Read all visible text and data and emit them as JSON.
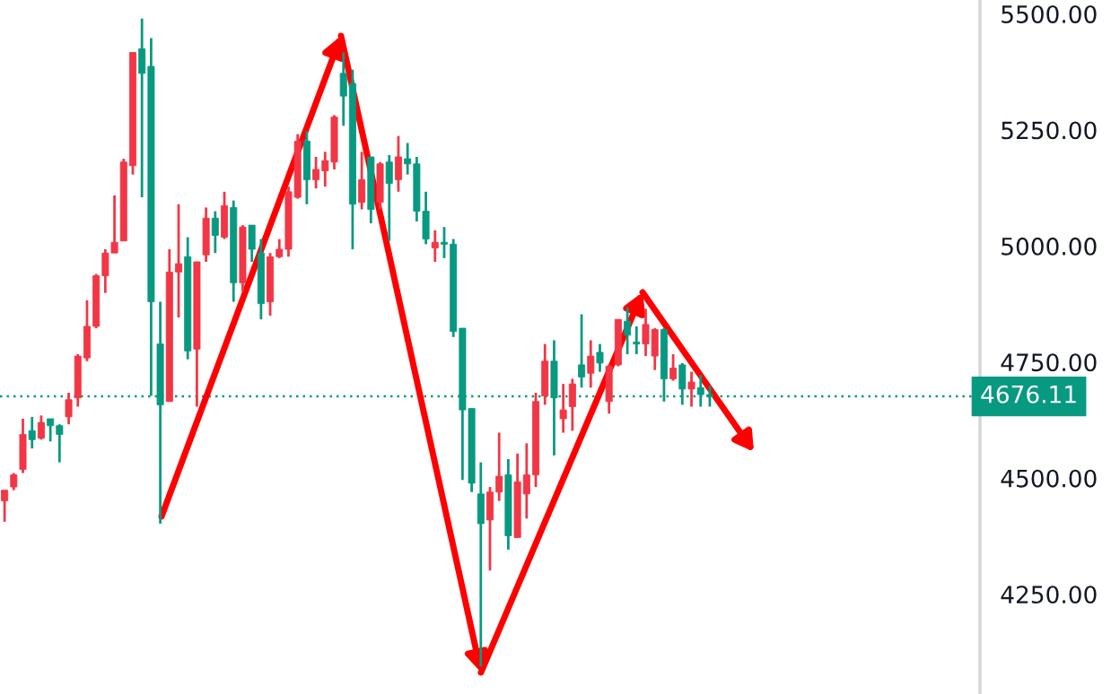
{
  "chart_data": {
    "type": "candlestick",
    "categories": [
      null,
      null,
      null,
      null,
      null,
      null,
      null,
      null,
      null,
      null,
      null,
      null,
      null,
      null,
      null,
      null,
      null,
      null,
      null,
      null,
      null,
      null,
      null,
      null,
      null,
      null,
      null,
      null,
      null,
      null,
      null,
      null,
      null,
      null,
      null,
      null,
      null,
      null,
      null,
      null,
      null,
      null,
      null,
      null,
      null,
      null,
      null,
      null,
      null,
      null,
      null,
      null,
      null,
      null,
      null,
      null,
      null,
      null,
      null,
      null,
      null,
      null,
      null,
      null,
      null,
      null,
      null,
      null,
      null,
      null,
      null,
      null,
      null,
      null,
      null,
      null,
      null,
      null,
      null,
      null,
      null,
      null,
      null,
      null,
      null,
      null,
      null,
      null,
      null,
      null,
      null,
      null,
      null,
      null,
      null,
      null,
      null,
      null,
      null,
      null,
      null,
      null,
      null,
      null,
      null,
      null,
      null
    ],
    "ohlc": [
      [
        4451,
        4474,
        4406,
        4474
      ],
      [
        4481,
        4511,
        4474,
        4507
      ],
      [
        4519,
        4628,
        4511,
        4594
      ],
      [
        4602,
        4632,
        4564,
        4583
      ],
      [
        4586,
        4635,
        4583,
        4620
      ],
      [
        4628,
        4628,
        4579,
        4613
      ],
      [
        4613,
        4616,
        4534,
        4594
      ],
      [
        4632,
        4684,
        4616,
        4669
      ],
      [
        4673,
        4767,
        4654,
        4763
      ],
      [
        4759,
        4883,
        4752,
        4827
      ],
      [
        4827,
        4940,
        4823,
        4936
      ],
      [
        4936,
        4993,
        4899,
        4985
      ],
      [
        4985,
        5109,
        4985,
        5008
      ],
      [
        5011,
        5188,
        5011,
        5181
      ],
      [
        5173,
        5417,
        5154,
        5417
      ],
      [
        5425,
        5490,
        5105,
        5372
      ],
      [
        5387,
        5448,
        4677,
        4880
      ],
      [
        4789,
        4880,
        4402,
        4658
      ],
      [
        4665,
        4993,
        4665,
        4944
      ],
      [
        4944,
        5090,
        4846,
        4962
      ],
      [
        4977,
        5019,
        4756,
        4774
      ],
      [
        4778,
        4966,
        4654,
        4966
      ],
      [
        4981,
        5083,
        4966,
        5060
      ],
      [
        5060,
        5075,
        4985,
        5023
      ],
      [
        5019,
        5117,
        5015,
        5087
      ],
      [
        5083,
        5098,
        4880,
        4921
      ],
      [
        4921,
        5045,
        4902,
        5041
      ],
      [
        5045,
        5045,
        4966,
        4993
      ],
      [
        4985,
        5015,
        4842,
        4876
      ],
      [
        4880,
        4985,
        4850,
        4977
      ],
      [
        4977,
        5015,
        4974,
        4993
      ],
      [
        4993,
        5128,
        4977,
        5117
      ],
      [
        5105,
        5241,
        5102,
        5226
      ],
      [
        5226,
        5248,
        5090,
        5143
      ],
      [
        5143,
        5192,
        5124,
        5165
      ],
      [
        5162,
        5203,
        5128,
        5184
      ],
      [
        5181,
        5282,
        5165,
        5278
      ],
      [
        5372,
        5417,
        5259,
        5323
      ],
      [
        5350,
        5380,
        4993,
        5090
      ],
      [
        5094,
        5203,
        5079,
        5143
      ],
      [
        5192,
        5192,
        5049,
        5079
      ],
      [
        5094,
        5181,
        5079,
        5177
      ],
      [
        5181,
        5196,
        5011,
        5135
      ],
      [
        5143,
        5237,
        5117,
        5192
      ],
      [
        5188,
        5222,
        5154,
        5177
      ],
      [
        5177,
        5192,
        5053,
        5075
      ],
      [
        5075,
        5117,
        5004,
        5015
      ],
      [
        4996,
        5034,
        4966,
        5008
      ],
      [
        5008,
        5041,
        4974,
        5004
      ],
      [
        5004,
        5015,
        4804,
        4816
      ],
      [
        4823,
        4823,
        4496,
        4647
      ],
      [
        4650,
        4650,
        4470,
        4489
      ],
      [
        4466,
        4534,
        4094,
        4402
      ],
      [
        4410,
        4481,
        4301,
        4470
      ],
      [
        4470,
        4598,
        4451,
        4504
      ],
      [
        4507,
        4541,
        4346,
        4376
      ],
      [
        4372,
        4553,
        4372,
        4492
      ],
      [
        4466,
        4575,
        4413,
        4507
      ],
      [
        4507,
        4684,
        4481,
        4665
      ],
      [
        4677,
        4789,
        4658,
        4752
      ],
      [
        4752,
        4797,
        4549,
        4673
      ],
      [
        4628,
        4703,
        4598,
        4647
      ],
      [
        4654,
        4714,
        4602,
        4703
      ],
      [
        4744,
        4853,
        4695,
        4718
      ],
      [
        4726,
        4797,
        4695,
        4763
      ],
      [
        4771,
        4789,
        4729,
        4748
      ],
      [
        4665,
        4744,
        4639,
        4741
      ],
      [
        4744,
        4842,
        4741,
        4842
      ],
      [
        4838,
        4868,
        4767,
        4808
      ],
      [
        4793,
        4827,
        4767,
        4789
      ],
      [
        4789,
        4865,
        4763,
        4831
      ],
      [
        4763,
        4823,
        4733,
        4820
      ],
      [
        4820,
        4823,
        4665,
        4714
      ],
      [
        4714,
        4767,
        4710,
        4737
      ],
      [
        4744,
        4748,
        4658,
        4692
      ],
      [
        4692,
        4729,
        4654,
        4707
      ],
      [
        4695,
        4722,
        4654,
        4680
      ],
      [
        4680,
        4699,
        4654,
        4676.11
      ],
      null,
      null,
      null,
      null,
      null,
      null,
      null,
      null,
      null,
      null,
      null,
      null,
      null,
      null,
      null,
      null,
      null,
      null,
      null,
      null,
      null,
      null,
      null,
      null,
      null,
      null,
      null,
      null,
      null
    ],
    "colors": [
      "#f23645",
      "#f23645",
      "#f23645",
      "#089981",
      "#f23645",
      "#089981",
      "#089981",
      "#f23645",
      "#f23645",
      "#f23645",
      "#f23645",
      "#f23645",
      "#f23645",
      "#f23645",
      "#f23645",
      "#089981",
      "#089981",
      "#089981",
      "#f23645",
      "#f23645",
      "#089981",
      "#f23645",
      "#f23645",
      "#089981",
      "#f23645",
      "#089981",
      "#f23645",
      "#089981",
      "#089981",
      "#f23645",
      "#f23645",
      "#f23645",
      "#f23645",
      "#089981",
      "#f23645",
      "#f23645",
      "#f23645",
      "#089981",
      "#089981",
      "#f23645",
      "#089981",
      "#f23645",
      "#089981",
      "#f23645",
      "#089981",
      "#089981",
      "#089981",
      "#f23645",
      "#089981",
      "#089981",
      "#089981",
      "#089981",
      "#089981",
      "#f23645",
      "#f23645",
      "#089981",
      "#f23645",
      "#f23645",
      "#f23645",
      "#f23645",
      "#089981",
      "#f23645",
      "#f23645",
      "#089981",
      "#f23645",
      "#089981",
      "#f23645",
      "#f23645",
      "#089981",
      "#089981",
      "#f23645",
      "#f23645",
      "#089981",
      "#f23645",
      "#089981",
      "#f23645",
      "#089981",
      "#089981",
      null,
      null,
      null,
      null,
      null,
      null,
      null,
      null,
      null,
      null,
      null,
      null,
      null,
      null,
      null,
      null,
      null,
      null,
      null,
      null,
      null,
      null,
      null,
      null,
      null,
      null,
      null,
      null,
      null
    ],
    "ylim": [
      4035,
      5530
    ],
    "yticks": [
      {
        "value": 4250,
        "label": "4250.00"
      },
      {
        "value": 4500,
        "label": "4500.00"
      },
      {
        "value": 4750,
        "label": "4750.00"
      },
      {
        "value": 5000,
        "label": "5000.00"
      },
      {
        "value": 5250,
        "label": "5250.00"
      },
      {
        "value": 5500,
        "label": "5500.00"
      }
    ],
    "tick_labels": "y",
    "grid": false,
    "ref_lines": [
      {
        "axis": "y",
        "value": 4676.11,
        "label": "4676.11",
        "color": "#089981",
        "line_style": "dotted"
      }
    ]
  }
}
